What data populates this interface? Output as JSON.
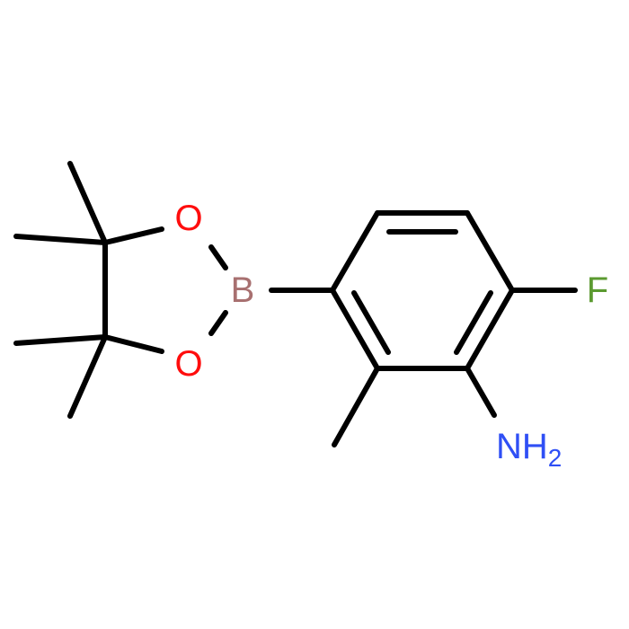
{
  "atoms": [
    {
      "label": "O",
      "color": "#ff0d0d"
    },
    {
      "label": "O",
      "color": "#ff0d0d"
    },
    {
      "label": "B",
      "color": "#a87070"
    },
    {
      "label": "F",
      "color": "#5b9a30"
    },
    {
      "label": "NH",
      "subscript": "2",
      "color": "#2f4ff5"
    }
  ]
}
